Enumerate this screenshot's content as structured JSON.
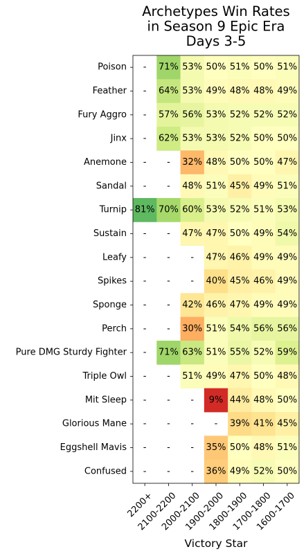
{
  "chart_data": {
    "type": "heatmap",
    "title": [
      "Archetypes Win Rates",
      "in Season 9 Epic Era",
      "Days 3-5"
    ],
    "xlabel": "Victory Star",
    "ylabel": "",
    "columns": [
      "2200+",
      "2100-2200",
      "2000-2100",
      "1900-2000",
      "1800-1900",
      "1700-1800",
      "1600-1700"
    ],
    "rows": [
      "Poison",
      "Feather",
      "Fury Aggro",
      "Jinx",
      "Anemone",
      "Sandal",
      "Turnip",
      "Sustain",
      "Leafy",
      "Spikes",
      "Sponge",
      "Perch",
      "Pure DMG Sturdy Fighter",
      "Triple Owl",
      "Mit Sleep",
      "Glorious Mane",
      "Eggshell Mavis",
      "Confused"
    ],
    "values": [
      [
        null,
        71,
        53,
        50,
        51,
        50,
        51
      ],
      [
        null,
        64,
        53,
        49,
        48,
        48,
        49
      ],
      [
        null,
        57,
        56,
        53,
        52,
        52,
        52
      ],
      [
        null,
        62,
        53,
        53,
        52,
        50,
        50
      ],
      [
        null,
        null,
        32,
        48,
        50,
        50,
        47
      ],
      [
        null,
        null,
        48,
        51,
        45,
        49,
        51
      ],
      [
        81,
        70,
        60,
        53,
        52,
        51,
        53
      ],
      [
        null,
        null,
        47,
        47,
        50,
        49,
        54
      ],
      [
        null,
        null,
        null,
        47,
        46,
        49,
        49
      ],
      [
        null,
        null,
        null,
        40,
        45,
        46,
        49
      ],
      [
        null,
        null,
        42,
        46,
        47,
        49,
        49
      ],
      [
        null,
        null,
        30,
        51,
        54,
        56,
        56
      ],
      [
        null,
        71,
        63,
        51,
        55,
        52,
        59
      ],
      [
        null,
        null,
        51,
        49,
        47,
        50,
        48
      ],
      [
        null,
        null,
        null,
        9,
        44,
        48,
        50
      ],
      [
        null,
        null,
        null,
        null,
        39,
        41,
        45
      ],
      [
        null,
        null,
        null,
        35,
        50,
        48,
        51
      ],
      [
        null,
        null,
        null,
        36,
        49,
        52,
        50
      ]
    ],
    "missing_symbol": "-",
    "value_suffix": "%",
    "colormap": "RdYlGn",
    "vmin": 0,
    "vmax": 100
  }
}
